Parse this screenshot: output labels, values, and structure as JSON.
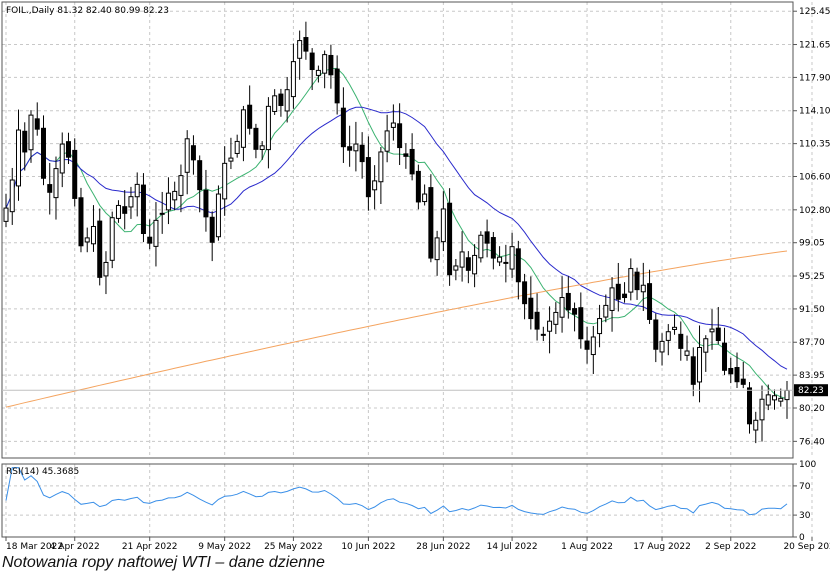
{
  "caption": "Notowania ropy naftowej WTI – dane dzienne",
  "chart_data": {
    "type": "candlestick",
    "header": "FOIL.,Daily  81.32 82.40 80.99 82.23",
    "price_axis": {
      "ticks": [
        "125.45",
        "121.65",
        "117.90",
        "114.10",
        "110.35",
        "106.60",
        "102.80",
        "99.05",
        "95.25",
        "91.50",
        "87.70",
        "83.95",
        "80.20",
        "76.40"
      ],
      "range": [
        74.5,
        126.5
      ],
      "current_price_label": "82.23",
      "current_price": 82.23
    },
    "x_axis": {
      "labels": [
        "18 Mar 2022",
        "4 Apr 2022",
        "21 Apr 2022",
        "9 May 2022",
        "25 May 2022",
        "10 Jun 2022",
        "28 Jun 2022",
        "14 Jul 2022",
        "1 Aug 2022",
        "17 Aug 2022",
        "2 Sep 2022",
        "20 Sep 2022"
      ],
      "label_bar_index": [
        0,
        11,
        23,
        35,
        46,
        58,
        70,
        81,
        93,
        105,
        116,
        129
      ]
    },
    "grid": true,
    "series_colors": {
      "candle": "#000000",
      "ma_fast": "#3cb371",
      "ma_mid": "#2a2acc",
      "ma_slow": "#f4a460",
      "rsi": "#3a8fe8"
    },
    "closes": [
      103.0,
      106.2,
      111.9,
      109.4,
      113.6,
      112.0,
      106.4,
      104.8,
      107.5,
      110.3,
      108.8,
      104.1,
      98.7,
      99.6,
      100.9,
      95.1,
      96.8,
      101.9,
      103.3,
      102.4,
      104.3,
      105.7,
      100.1,
      99.0,
      101.6,
      102.4,
      104.7,
      104.9,
      106.7,
      110.9,
      108.5,
      105.1,
      102.0,
      99.1,
      104.6,
      108.1,
      108.7,
      110.6,
      114.2,
      112.1,
      109.7,
      110.1,
      114.6,
      115.8,
      114.7,
      116.5,
      119.7,
      122.1,
      120.9,
      118.8,
      118.7,
      120.5,
      118.2,
      115.0,
      110.0,
      109.6,
      110.3,
      108.3,
      104.3,
      106.1,
      109.4,
      111.8,
      112.7,
      109.9,
      108.9,
      106.9,
      103.7,
      104.6,
      97.3,
      99.6,
      102.9,
      95.4,
      96.4,
      98.0,
      95.9,
      97.6,
      99.9,
      99.0,
      97.3,
      97.4,
      96.8,
      98.6,
      94.6,
      92.1,
      90.4,
      89.2,
      88.6,
      90.1,
      91.1,
      92.8,
      91.4,
      90.9,
      88.1,
      86.9,
      88.3,
      90.4,
      91.9,
      93.9,
      92.6,
      92.8,
      96.1,
      93.7,
      94.2,
      90.3,
      86.9,
      87.8,
      88.9,
      89.4,
      87.0,
      86.7,
      82.9,
      87.1,
      88.1,
      89.2,
      87.9,
      84.5,
      84.1,
      83.2,
      82.9,
      78.4,
      78.8,
      81.2,
      81.7,
      81.6,
      81.3,
      82.2
    ],
    "ma_slow_start": 80.3,
    "ma_slow_end": 98.1,
    "rsi": {
      "label": "RSI(14) 45.3685",
      "period": 14,
      "value": 45.3685,
      "ticks": [
        "100",
        "70",
        "30",
        "0"
      ],
      "levels": [
        70,
        30
      ],
      "range": [
        0,
        100
      ]
    }
  }
}
